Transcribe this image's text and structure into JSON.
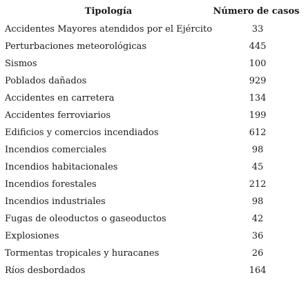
{
  "table": {
    "headers": {
      "tipologia": "Tipología",
      "casos": "Número de casos"
    },
    "rows": [
      {
        "tipologia": "Accidentes Mayores atendidos por el Ejército",
        "casos": "33"
      },
      {
        "tipologia": "Perturbaciones meteorológicas",
        "casos": "445"
      },
      {
        "tipologia": "Sismos",
        "casos": "100"
      },
      {
        "tipologia": "Poblados dañados",
        "casos": "929"
      },
      {
        "tipologia": "Accidentes en carretera",
        "casos": "134"
      },
      {
        "tipologia": "Accidentes ferroviarios",
        "casos": "199"
      },
      {
        "tipologia": "Edificios y comercios incendiados",
        "casos": "612"
      },
      {
        "tipologia": "Incendios comerciales",
        "casos": "98"
      },
      {
        "tipologia": "Incendios habitacionales",
        "casos": "45"
      },
      {
        "tipologia": "Incendios forestales",
        "casos": "212"
      },
      {
        "tipologia": "Incendios industriales",
        "casos": "98"
      },
      {
        "tipologia": "Fugas de oleoductos o gaseoductos",
        "casos": "42"
      },
      {
        "tipologia": "Explosiones",
        "casos": "36"
      },
      {
        "tipologia": "Tormentas tropicales y huracanes",
        "casos": "26"
      },
      {
        "tipologia": "Ríos desbordados",
        "casos": "164"
      }
    ]
  }
}
